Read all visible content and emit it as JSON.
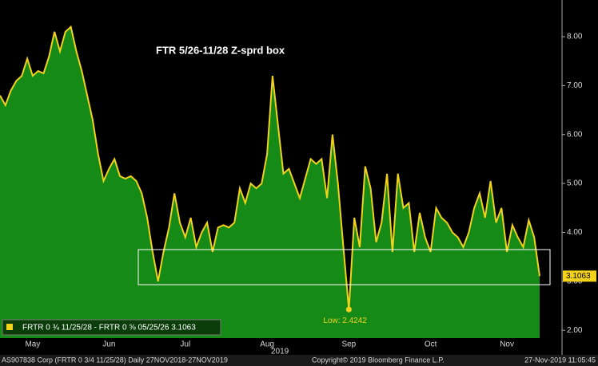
{
  "chart_data": {
    "type": "area",
    "title": "FTR 5/26-11/28 Z-sprd box",
    "categories": [
      null,
      null,
      null,
      null,
      null,
      null,
      "May",
      null,
      null,
      null,
      null,
      null,
      null,
      null,
      null,
      null,
      null,
      null,
      null,
      null,
      "Jun",
      null,
      null,
      null,
      null,
      null,
      null,
      null,
      null,
      null,
      null,
      null,
      null,
      null,
      "Jul",
      null,
      null,
      null,
      null,
      null,
      null,
      null,
      null,
      null,
      null,
      null,
      null,
      null,
      null,
      "Aug",
      null,
      null,
      null,
      null,
      null,
      null,
      null,
      null,
      null,
      null,
      null,
      null,
      null,
      null,
      "Sep",
      null,
      null,
      null,
      null,
      null,
      null,
      null,
      null,
      null,
      null,
      null,
      null,
      null,
      null,
      "Oct",
      null,
      null,
      null,
      null,
      null,
      null,
      null,
      null,
      null,
      null,
      null,
      null,
      null,
      "Nov",
      null,
      null,
      null,
      null,
      null,
      null
    ],
    "x_year_label": "2019",
    "series": [
      {
        "name": "FRTR 0 ¾ 11/25/28 - FRTR 0 ⅝ 05/25/26 3.1063",
        "color": "#f2d21b",
        "fill": "#168a16",
        "values": [
          6.8,
          6.6,
          6.9,
          7.1,
          7.2,
          7.55,
          7.2,
          7.3,
          7.25,
          7.6,
          8.1,
          7.7,
          8.1,
          8.2,
          7.7,
          7.3,
          6.8,
          6.3,
          5.6,
          5.05,
          5.3,
          5.5,
          5.15,
          5.1,
          5.15,
          5.05,
          4.8,
          4.3,
          3.6,
          3.0,
          3.6,
          4.1,
          4.8,
          4.2,
          3.9,
          4.3,
          3.7,
          4.0,
          4.2,
          3.6,
          4.1,
          4.15,
          4.1,
          4.2,
          4.9,
          4.6,
          5.0,
          4.9,
          5.0,
          5.6,
          7.2,
          6.2,
          5.2,
          5.3,
          5.0,
          4.7,
          5.1,
          5.5,
          5.4,
          5.5,
          4.7,
          6.0,
          5.0,
          3.7,
          2.4242,
          4.3,
          3.7,
          5.35,
          4.9,
          3.8,
          4.2,
          5.2,
          3.6,
          5.2,
          4.5,
          4.6,
          3.6,
          4.4,
          3.9,
          3.6,
          4.5,
          4.3,
          4.2,
          4.0,
          3.9,
          3.7,
          4.0,
          4.5,
          4.8,
          4.3,
          5.05,
          4.2,
          4.5,
          3.6,
          4.15,
          3.9,
          3.7,
          4.25,
          3.9,
          3.1063
        ]
      }
    ],
    "low_label": "Low: 2.4242",
    "last_value_label": "3.1063",
    "ylim": [
      1.84,
      8.75
    ],
    "yticks": [
      {
        "value": 2,
        "label": "2.00"
      },
      {
        "value": 3,
        "label": "3.00"
      },
      {
        "value": 4,
        "label": "4.00"
      },
      {
        "value": 5,
        "label": "5.00"
      },
      {
        "value": 6,
        "label": "6.00"
      },
      {
        "value": 7,
        "label": "7.00"
      },
      {
        "value": 8,
        "label": "8.00"
      }
    ],
    "footer": [
      "AS907838 Corp (FRTR 0 3/4 11/25/28)  Daily 27NOV2018-27NOV2019",
      "Copyright© 2019 Bloomberg Finance L.P.",
      "27-Nov-2019 11:05:45"
    ]
  }
}
